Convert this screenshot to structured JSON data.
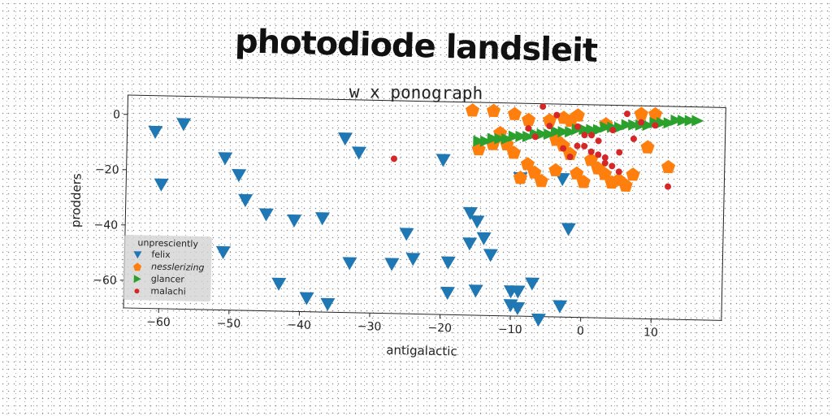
{
  "title": "photodiode landsleit",
  "subtitle": "w x ponograph",
  "chart_data": {
    "type": "scatter",
    "xlabel": "antigalactic",
    "ylabel": "prodders",
    "xlim": [
      -65,
      20
    ],
    "ylim": [
      -70,
      7
    ],
    "xticks": [
      -60,
      -50,
      -40,
      -30,
      -20,
      -10,
      0,
      10
    ],
    "xtick_labels": [
      "−60",
      "−50",
      "−40",
      "−30",
      "−20",
      "−10",
      "0",
      "10"
    ],
    "yticks": [
      0,
      -20,
      -40,
      -60
    ],
    "ytick_labels": [
      "0",
      "−20",
      "−40",
      "−60"
    ],
    "grid": false,
    "legend": {
      "title": "unpresciently",
      "placement": "bottom-left"
    },
    "series": [
      {
        "name": "felix",
        "marker": "triangle-down",
        "color": "#1f77b4",
        "points": [
          [
            -61,
            -6
          ],
          [
            -57,
            -3
          ],
          [
            -60,
            -25
          ],
          [
            -51,
            -15
          ],
          [
            -49,
            -21
          ],
          [
            -48,
            -30
          ],
          [
            -45,
            -35
          ],
          [
            -41,
            -37
          ],
          [
            -37,
            -36
          ],
          [
            -34,
            -7
          ],
          [
            -32,
            -12
          ],
          [
            -51,
            -49
          ],
          [
            -43,
            -60
          ],
          [
            -39,
            -65
          ],
          [
            -36,
            -67
          ],
          [
            -33,
            -52
          ],
          [
            -27,
            -52
          ],
          [
            -25,
            -41
          ],
          [
            -24,
            -50
          ],
          [
            -20,
            -14
          ],
          [
            -19,
            -51
          ],
          [
            -19,
            -62
          ],
          [
            -16,
            -33
          ],
          [
            -15,
            -36
          ],
          [
            -16,
            -44
          ],
          [
            -14,
            -42
          ],
          [
            -13,
            -48
          ],
          [
            -15,
            -61
          ],
          [
            -10,
            -61
          ],
          [
            -9,
            -61
          ],
          [
            -10,
            -66
          ],
          [
            -9,
            -67
          ],
          [
            -7,
            -58
          ],
          [
            -6,
            -71
          ],
          [
            -3,
            -66
          ],
          [
            -2,
            -38
          ],
          [
            -9,
            -20
          ],
          [
            -3,
            -20
          ]
        ]
      },
      {
        "name": "nesslerizing",
        "marker": "pentagon",
        "color": "#ff7f0e",
        "italic": true,
        "points": [
          [
            -16,
            4
          ],
          [
            -13,
            4
          ],
          [
            -10,
            3
          ],
          [
            -8,
            1
          ],
          [
            -5,
            1
          ],
          [
            -3,
            2
          ],
          [
            -2,
            1
          ],
          [
            -1,
            3
          ],
          [
            3,
            0
          ],
          [
            8,
            4
          ],
          [
            10,
            4
          ],
          [
            -15,
            -10
          ],
          [
            -13,
            -8
          ],
          [
            -12,
            -4
          ],
          [
            -11,
            -8
          ],
          [
            -10,
            -11
          ],
          [
            -8,
            -15
          ],
          [
            -7,
            -18
          ],
          [
            -9,
            -20
          ],
          [
            -6,
            -21
          ],
          [
            -4,
            -17
          ],
          [
            -2,
            -11
          ],
          [
            -1,
            -18
          ],
          [
            0,
            -21
          ],
          [
            1,
            -13
          ],
          [
            2,
            -16
          ],
          [
            3,
            -18
          ],
          [
            4,
            -21
          ],
          [
            5,
            -20
          ],
          [
            6,
            -22
          ],
          [
            7,
            -18
          ],
          [
            9,
            -8
          ],
          [
            12,
            -15
          ],
          [
            -4,
            -6
          ],
          [
            -3,
            -8
          ]
        ]
      },
      {
        "name": "glancer",
        "marker": "triangle-right",
        "color": "#2ca02c",
        "points": [
          [
            -15,
            -7
          ],
          [
            -14,
            -7
          ],
          [
            -13,
            -6
          ],
          [
            -12,
            -6
          ],
          [
            -11,
            -6
          ],
          [
            -10,
            -5
          ],
          [
            -9,
            -5
          ],
          [
            -8,
            -5
          ],
          [
            -7,
            -4
          ],
          [
            -6,
            -4
          ],
          [
            -5,
            -4
          ],
          [
            -4,
            -3
          ],
          [
            -3,
            -3
          ],
          [
            -2,
            -3
          ],
          [
            -1,
            -2
          ],
          [
            0,
            -2
          ],
          [
            1,
            -2
          ],
          [
            2,
            -2
          ],
          [
            3,
            -1
          ],
          [
            4,
            -1
          ],
          [
            5,
            -1
          ],
          [
            6,
            0
          ],
          [
            7,
            0
          ],
          [
            8,
            0
          ],
          [
            9,
            0
          ],
          [
            10,
            1
          ],
          [
            11,
            1
          ],
          [
            12,
            1
          ],
          [
            13,
            2
          ],
          [
            14,
            2
          ],
          [
            15,
            2
          ],
          [
            16,
            2
          ]
        ]
      },
      {
        "name": "malachi",
        "marker": "circle",
        "color": "#d62728",
        "points": [
          [
            -27,
            -14
          ],
          [
            -6,
            6
          ],
          [
            -4,
            3
          ],
          [
            -8,
            -2
          ],
          [
            -7,
            -5
          ],
          [
            -5,
            -1
          ],
          [
            -3,
            -9
          ],
          [
            -1,
            -1
          ],
          [
            0,
            -4
          ],
          [
            0,
            -8
          ],
          [
            1,
            -4
          ],
          [
            1,
            -10
          ],
          [
            2,
            -11
          ],
          [
            3,
            -12
          ],
          [
            3,
            -14
          ],
          [
            4,
            -15
          ],
          [
            5,
            -10
          ],
          [
            6,
            4
          ],
          [
            7,
            -5
          ],
          [
            8,
            1
          ],
          [
            10,
            0
          ],
          [
            12,
            -22
          ],
          [
            4,
            -2
          ],
          [
            2,
            -6
          ],
          [
            -2,
            -12
          ],
          [
            -1,
            -8
          ],
          [
            5,
            -17
          ]
        ]
      }
    ]
  }
}
